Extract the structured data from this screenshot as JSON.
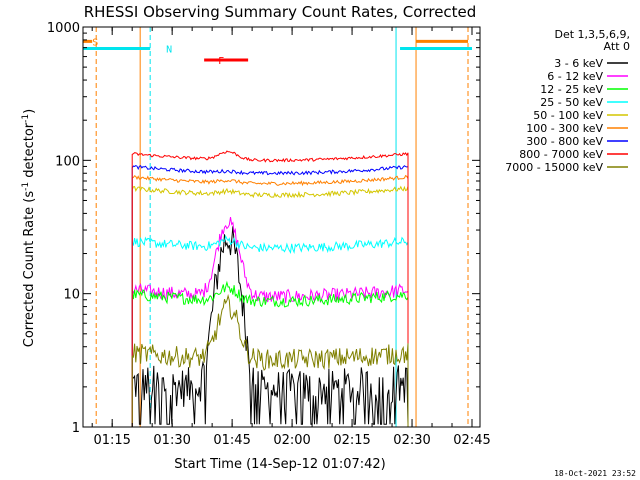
{
  "chart_data": {
    "type": "line",
    "title": "RHESSI Observing Summary Count Rates, Corrected",
    "xlabel": "Start Time (14-Sep-12 01:07:42)",
    "ylabel_main": "Corrected Count Rate (s",
    "ylabel_exp1": "-1",
    "ylabel_mid": " detector",
    "ylabel_exp2": "-1",
    "ylabel_end": ")",
    "yscale": "log",
    "ylim": [
      1,
      1000
    ],
    "xlim": [
      "01:07:42",
      "02:47:00"
    ],
    "x_ticks": [
      "01:15",
      "01:30",
      "01:45",
      "02:00",
      "02:15",
      "02:30",
      "02:45"
    ],
    "y_ticks": [
      "1",
      "10",
      "100",
      "1000"
    ],
    "legend_header": [
      "Det 1,3,5,6,9,",
      "Att 0"
    ],
    "legend_position": "right",
    "flags": {
      "S": {
        "label": "S",
        "color": "#ff8000",
        "x": "01:09:30",
        "y": 780
      },
      "N": {
        "label": "N",
        "color": "#00e5ee",
        "x": "01:28:00",
        "y": 690
      },
      "F": {
        "label": "F",
        "color": "#ff0000",
        "x": "01:41:00",
        "y": 565
      }
    },
    "night_spans": [
      [
        "01:07:42",
        "01:24:30"
      ],
      [
        "02:27:00",
        "02:45:00"
      ]
    ],
    "flare_span": [
      "01:38:00",
      "01:49:00"
    ],
    "orange_vlines": [
      "01:11:00",
      "01:22:00",
      "02:31:00",
      "02:44:00"
    ],
    "cyan_vlines": [
      "01:24:30",
      "02:26:00"
    ],
    "data_range": [
      "01:20:00",
      "02:29:00"
    ],
    "footer_date": "18-Oct-2021 23:52",
    "series": [
      {
        "name": "3 - 6 keV",
        "color": "#000000",
        "base": 1.9,
        "peak": 26,
        "noise": 0.35
      },
      {
        "name": "6 - 12 keV",
        "color": "#ff00ff",
        "base": 9.5,
        "peak": 34,
        "noise": 0.12
      },
      {
        "name": "12 - 25 keV",
        "color": "#00ff00",
        "base": 8.8,
        "peak": 11,
        "noise": 0.1
      },
      {
        "name": "25 - 50 keV",
        "color": "#00ffff",
        "base": 22,
        "peak": 25,
        "noise": 0.08
      },
      {
        "name": "50 - 100 keV",
        "color": "#d4c600",
        "base": 55,
        "peak": 58,
        "noise": 0.04
      },
      {
        "name": "100 - 300 keV",
        "color": "#ff8000",
        "base": 67,
        "peak": 70,
        "noise": 0.03
      },
      {
        "name": "300 - 800 keV",
        "color": "#0000ff",
        "base": 80,
        "peak": 82,
        "noise": 0.03
      },
      {
        "name": "800 - 7000 keV",
        "color": "#ff0000",
        "base": 100,
        "peak": 115,
        "noise": 0.025
      },
      {
        "name": "7000 - 15000 keV",
        "color": "#808000",
        "base": 3.2,
        "peak": 8,
        "noise": 0.18
      }
    ]
  }
}
